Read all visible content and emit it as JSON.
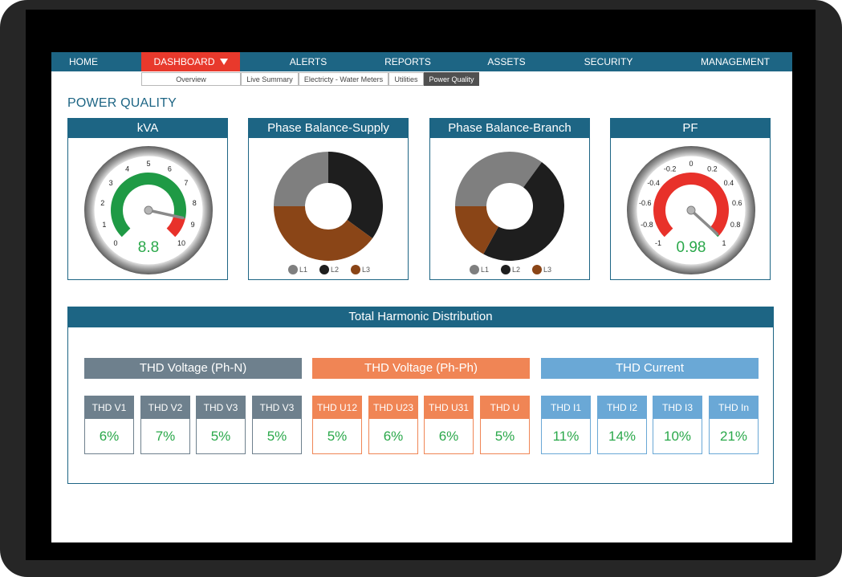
{
  "nav": {
    "items": [
      {
        "label": "HOME"
      },
      {
        "label": "DASHBOARD"
      },
      {
        "label": "ALERTS"
      },
      {
        "label": "REPORTS"
      },
      {
        "label": "ASSETS"
      },
      {
        "label": "SECURITY"
      },
      {
        "label": "MANAGEMENT"
      }
    ],
    "active": "DASHBOARD",
    "subitems": [
      {
        "label": "Overview"
      },
      {
        "label": "Live Summary"
      },
      {
        "label": "Electricty - Water Meters"
      },
      {
        "label": "Utilities"
      },
      {
        "label": "Power Quality"
      }
    ],
    "active_sub": "Power Quality"
  },
  "page": {
    "title": "POWER QUALITY"
  },
  "colors": {
    "header_blue": "#1d6584",
    "active_red": "#e8392c",
    "gauge_green": "#1f9a45",
    "gauge_red": "#e8312a",
    "value_green": "#2aa84a",
    "l1_gray": "#7f7f7f",
    "l2_black": "#1e1e1e",
    "l3_brown": "#8a4517",
    "phn_gray": "#6e808d",
    "phph_orange": "#f08555",
    "current_blue": "#6aa8d6"
  },
  "panels": {
    "kva": {
      "title": "kVA",
      "value": "8.8",
      "reading": 8.8,
      "min": 0,
      "max": 10,
      "ticks": [
        "0",
        "1",
        "2",
        "3",
        "4",
        "5",
        "6",
        "7",
        "8",
        "9",
        "10"
      ]
    },
    "supply": {
      "title": "Phase Balance-Supply",
      "legend": [
        "L1",
        "L2",
        "L3"
      ]
    },
    "branch": {
      "title": "Phase Balance-Branch",
      "legend": [
        "L1",
        "L2",
        "L3"
      ]
    },
    "pf": {
      "title": "PF",
      "value": "0.98",
      "reading": 0.98,
      "min": -1,
      "max": 1,
      "ticks": [
        "-1",
        "-0.8",
        "-0.6",
        "-0.4",
        "-0.2",
        "0",
        "0.2",
        "0.4",
        "0.6",
        "0.8",
        "1"
      ]
    }
  },
  "chart_data": [
    {
      "type": "pie",
      "title": "Phase Balance-Supply",
      "labels": [
        "L1",
        "L2",
        "L3"
      ],
      "values": [
        25,
        35,
        40
      ]
    },
    {
      "type": "pie",
      "title": "Phase Balance-Branch",
      "labels": [
        "L1",
        "L2",
        "L3"
      ],
      "values": [
        35,
        48,
        17
      ]
    }
  ],
  "thd": {
    "title": "Total Harmonic Distribution",
    "groups": [
      {
        "title": "THD Voltage (Ph-N)",
        "cells": [
          {
            "label": "THD V1",
            "value": "6%"
          },
          {
            "label": "THD V2",
            "value": "7%"
          },
          {
            "label": "THD V3",
            "value": "5%"
          },
          {
            "label": "THD V3",
            "value": "5%"
          }
        ]
      },
      {
        "title": "THD Voltage (Ph-Ph)",
        "cells": [
          {
            "label": "THD U12",
            "value": "5%"
          },
          {
            "label": "THD U23",
            "value": "6%"
          },
          {
            "label": "THD U31",
            "value": "6%"
          },
          {
            "label": "THD U",
            "value": "5%"
          }
        ]
      },
      {
        "title": "THD Current",
        "cells": [
          {
            "label": "THD I1",
            "value": "11%"
          },
          {
            "label": "THD I2",
            "value": "14%"
          },
          {
            "label": "THD I3",
            "value": "10%"
          },
          {
            "label": "THD In",
            "value": "21%"
          }
        ]
      }
    ]
  }
}
